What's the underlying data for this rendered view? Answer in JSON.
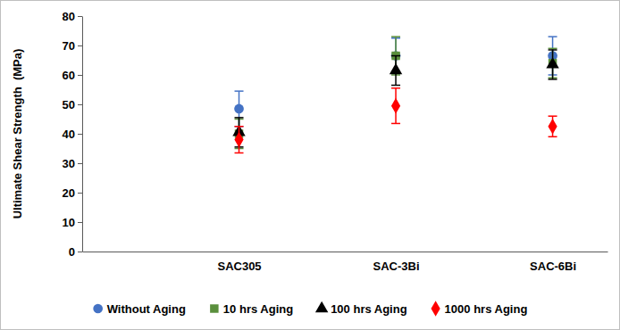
{
  "chart_data": {
    "type": "scatter",
    "categories": [
      "SAC305",
      "SAC-3Bi",
      "SAC-6Bi"
    ],
    "y_label": "Ultimate Shear Strength  (MPa)",
    "ylim": [
      0,
      80
    ],
    "yticks": [
      0,
      10,
      20,
      30,
      40,
      50,
      60,
      70,
      80
    ],
    "legend": "bottom",
    "series": [
      {
        "name": "Without Aging",
        "color": "#4472c4",
        "marker": "circle",
        "values": [
          48.5,
          66.5,
          66.5
        ],
        "errors": [
          6,
          6,
          6.5
        ]
      },
      {
        "name": "10 hrs Aging",
        "color": "#5a8f3c",
        "marker": "square",
        "values": [
          40,
          66.5,
          64
        ],
        "errors": [
          5,
          6.5,
          5
        ]
      },
      {
        "name": "100 hrs Aging",
        "color": "#000000",
        "marker": "triangle",
        "values": [
          40.5,
          61.5,
          63.5
        ],
        "errors": [
          5,
          5,
          5
        ]
      },
      {
        "name": "1000 hrs Aging",
        "color": "#ff0000",
        "marker": "diamond",
        "values": [
          38,
          49.5,
          42.5
        ],
        "errors": [
          4.5,
          6,
          3.5
        ]
      }
    ]
  }
}
